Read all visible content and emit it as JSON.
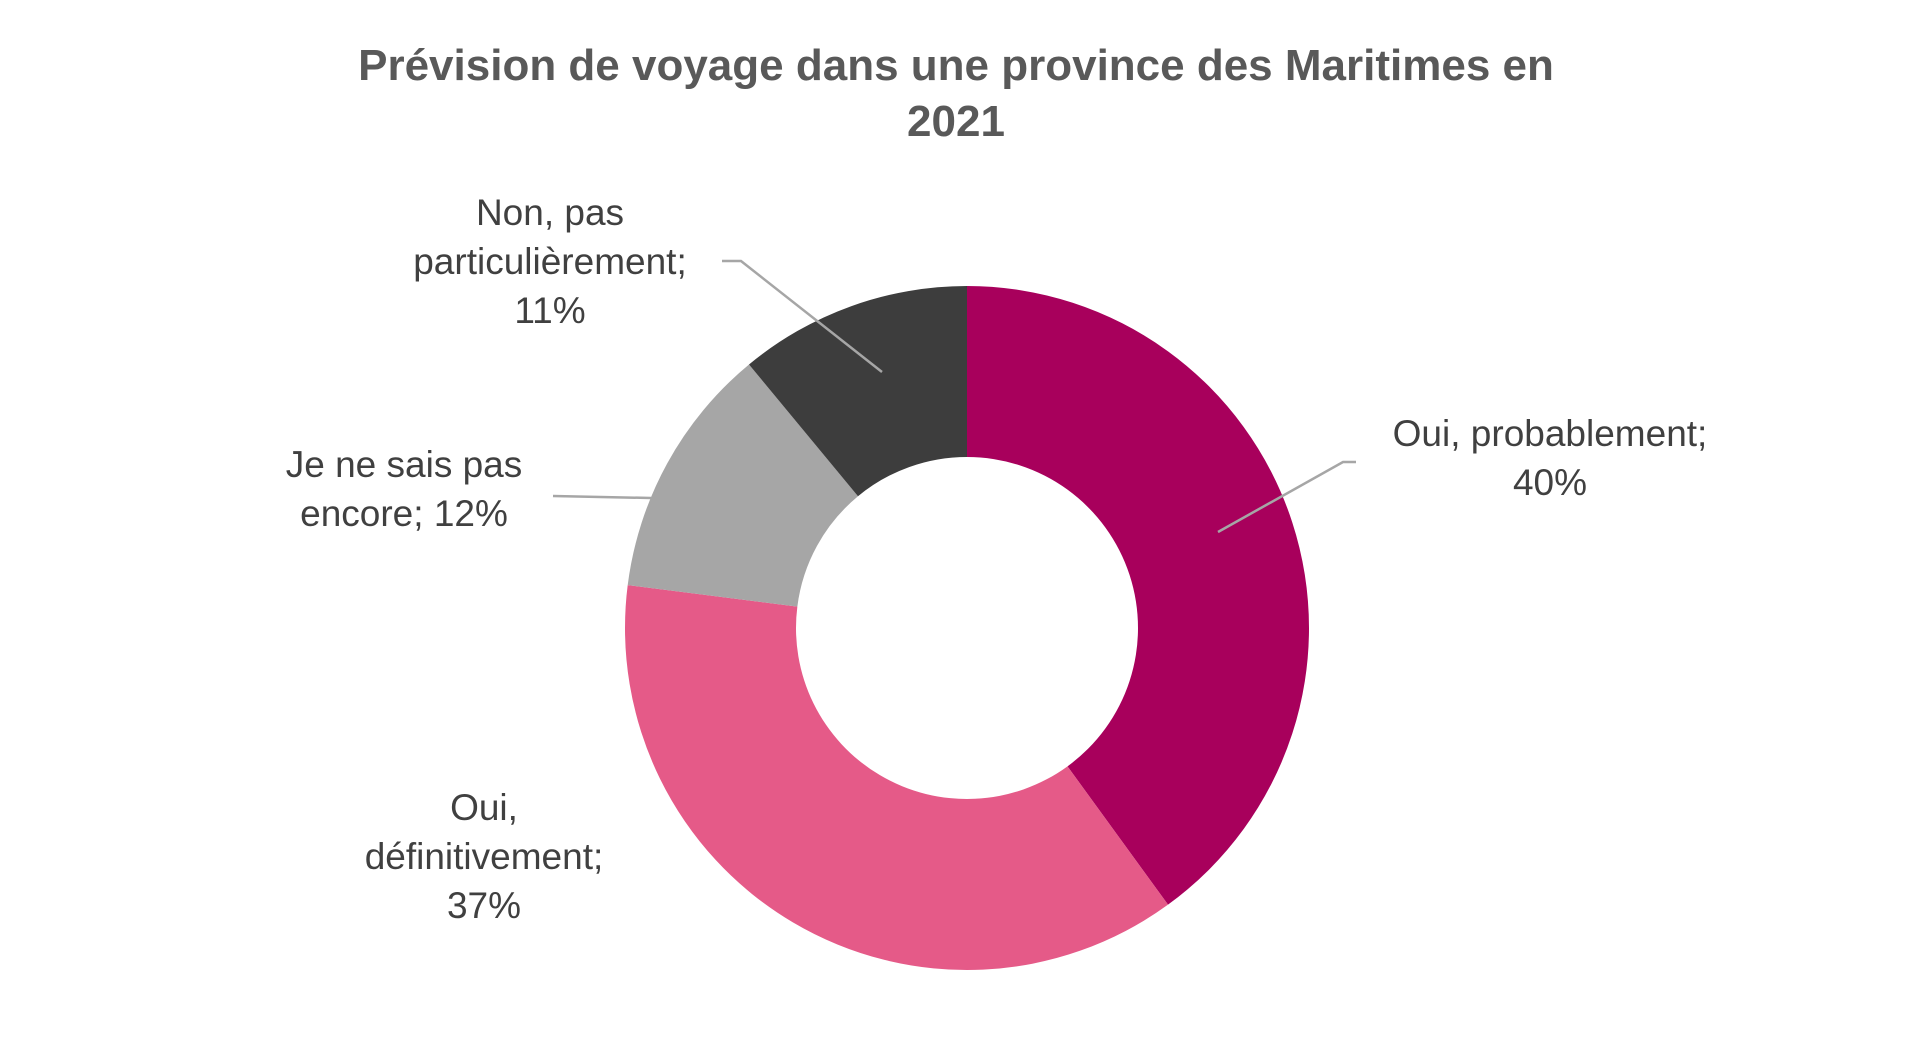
{
  "chart_data": {
    "type": "pie",
    "style": "donut",
    "title": "Prévision de voyage dans une province des Maritimes en 2021",
    "title_lines": [
      "Prévision de voyage dans une province des Maritimes en",
      "2021"
    ],
    "slices": [
      {
        "name": "Oui, probablement",
        "value": 40,
        "color": "#a8005c",
        "label_lines": [
          "Oui, probablement;",
          "40%"
        ]
      },
      {
        "name": "Oui, définitivement",
        "value": 37,
        "color": "#e55a88",
        "label_lines": [
          "Oui,",
          "définitivement;",
          "37%"
        ]
      },
      {
        "name": "Je ne sais pas encore",
        "value": 12,
        "color": "#a6a6a6",
        "label_lines": [
          "Je ne sais pas",
          "encore; 12%"
        ]
      },
      {
        "name": "Non, pas particulièrement",
        "value": 11,
        "color": "#3d3d3d",
        "label_lines": [
          "Non, pas",
          "particulièrement;",
          "11%"
        ]
      }
    ],
    "legend": "none"
  }
}
